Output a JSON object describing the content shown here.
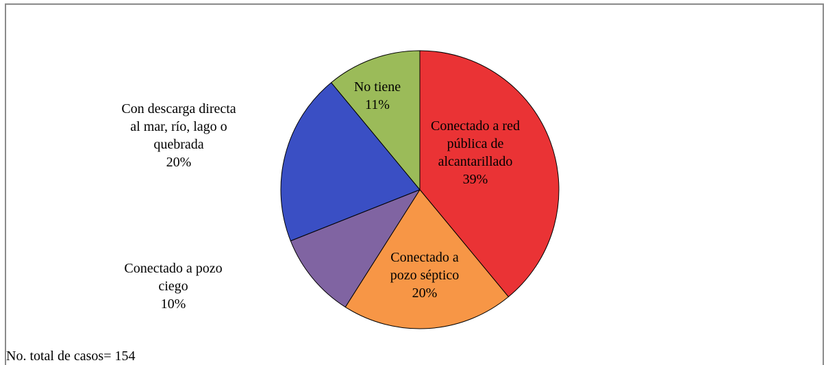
{
  "chart_data": {
    "type": "pie",
    "slices": [
      {
        "label_lines": [
          "Conectado a red",
          "pública de",
          "alcantarillado"
        ],
        "value": 39,
        "value_label": "39%",
        "color": "#ea3335"
      },
      {
        "label_lines": [
          "Conectado a",
          "pozo séptico"
        ],
        "value": 20,
        "value_label": "20%",
        "color": "#f79646"
      },
      {
        "label_lines": [
          "Conectado a pozo",
          "ciego"
        ],
        "value": 10,
        "value_label": "10%",
        "color": "#8064a2"
      },
      {
        "label_lines": [
          "Con descarga directa",
          "al mar, río, lago o",
          "quebrada"
        ],
        "value": 20,
        "value_label": "20%",
        "color": "#3a4fc4"
      },
      {
        "label_lines": [
          "No tiene"
        ],
        "value": 11,
        "value_label": "11%",
        "color": "#9bbb59"
      }
    ],
    "start": "12 o'clock",
    "direction": "clockwise"
  },
  "footnote": "No. total de casos= 154"
}
